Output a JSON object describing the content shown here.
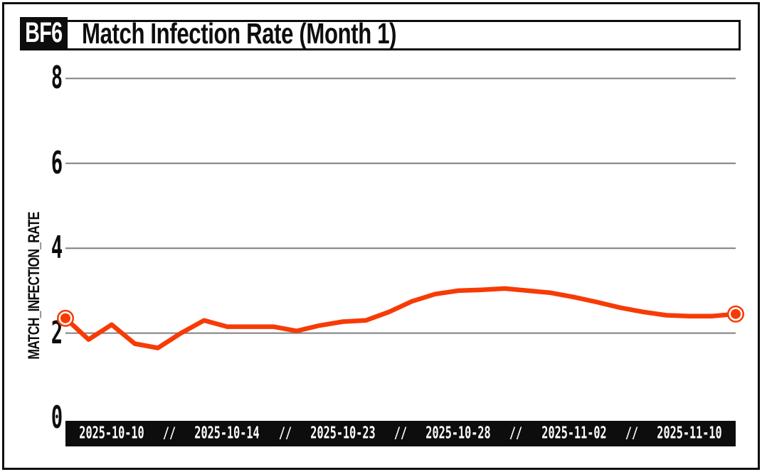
{
  "header": {
    "badge": "BF6",
    "title": "Match Infection Rate (Month 1)"
  },
  "chart_data": {
    "type": "line",
    "title": "Match Infection Rate (Month 1)",
    "xlabel": "",
    "ylabel": "MATCH_INFECTION_RATE",
    "ylim": [
      0,
      8.6
    ],
    "yticks": [
      0,
      2,
      4,
      6,
      8
    ],
    "grid": true,
    "legend": "none",
    "x_tick_labels": [
      "2025-10-10",
      "2025-10-14",
      "2025-10-23",
      "2025-10-28",
      "2025-11-02",
      "2025-11-10"
    ],
    "x_tick_indices": [
      2,
      7,
      12,
      17,
      22,
      27
    ],
    "x_tick_separator": "//",
    "series": [
      {
        "name": "match_infection_rate",
        "values": [
          2.35,
          1.85,
          2.2,
          1.75,
          1.65,
          2.0,
          2.3,
          2.15,
          2.15,
          2.15,
          2.05,
          2.18,
          2.27,
          2.3,
          2.5,
          2.75,
          2.92,
          3.0,
          3.02,
          3.05,
          3.0,
          2.95,
          2.85,
          2.73,
          2.6,
          2.5,
          2.42,
          2.4,
          2.4,
          2.45
        ]
      }
    ],
    "endpoint_markers": true,
    "colors": {
      "line": "#F73B05",
      "grid": "#7f7f7f",
      "ink": "#0d0d0d",
      "axis_bar_bg": "#0d0d0d",
      "axis_bar_text": "#ffffff",
      "background": "#ffffff"
    }
  }
}
